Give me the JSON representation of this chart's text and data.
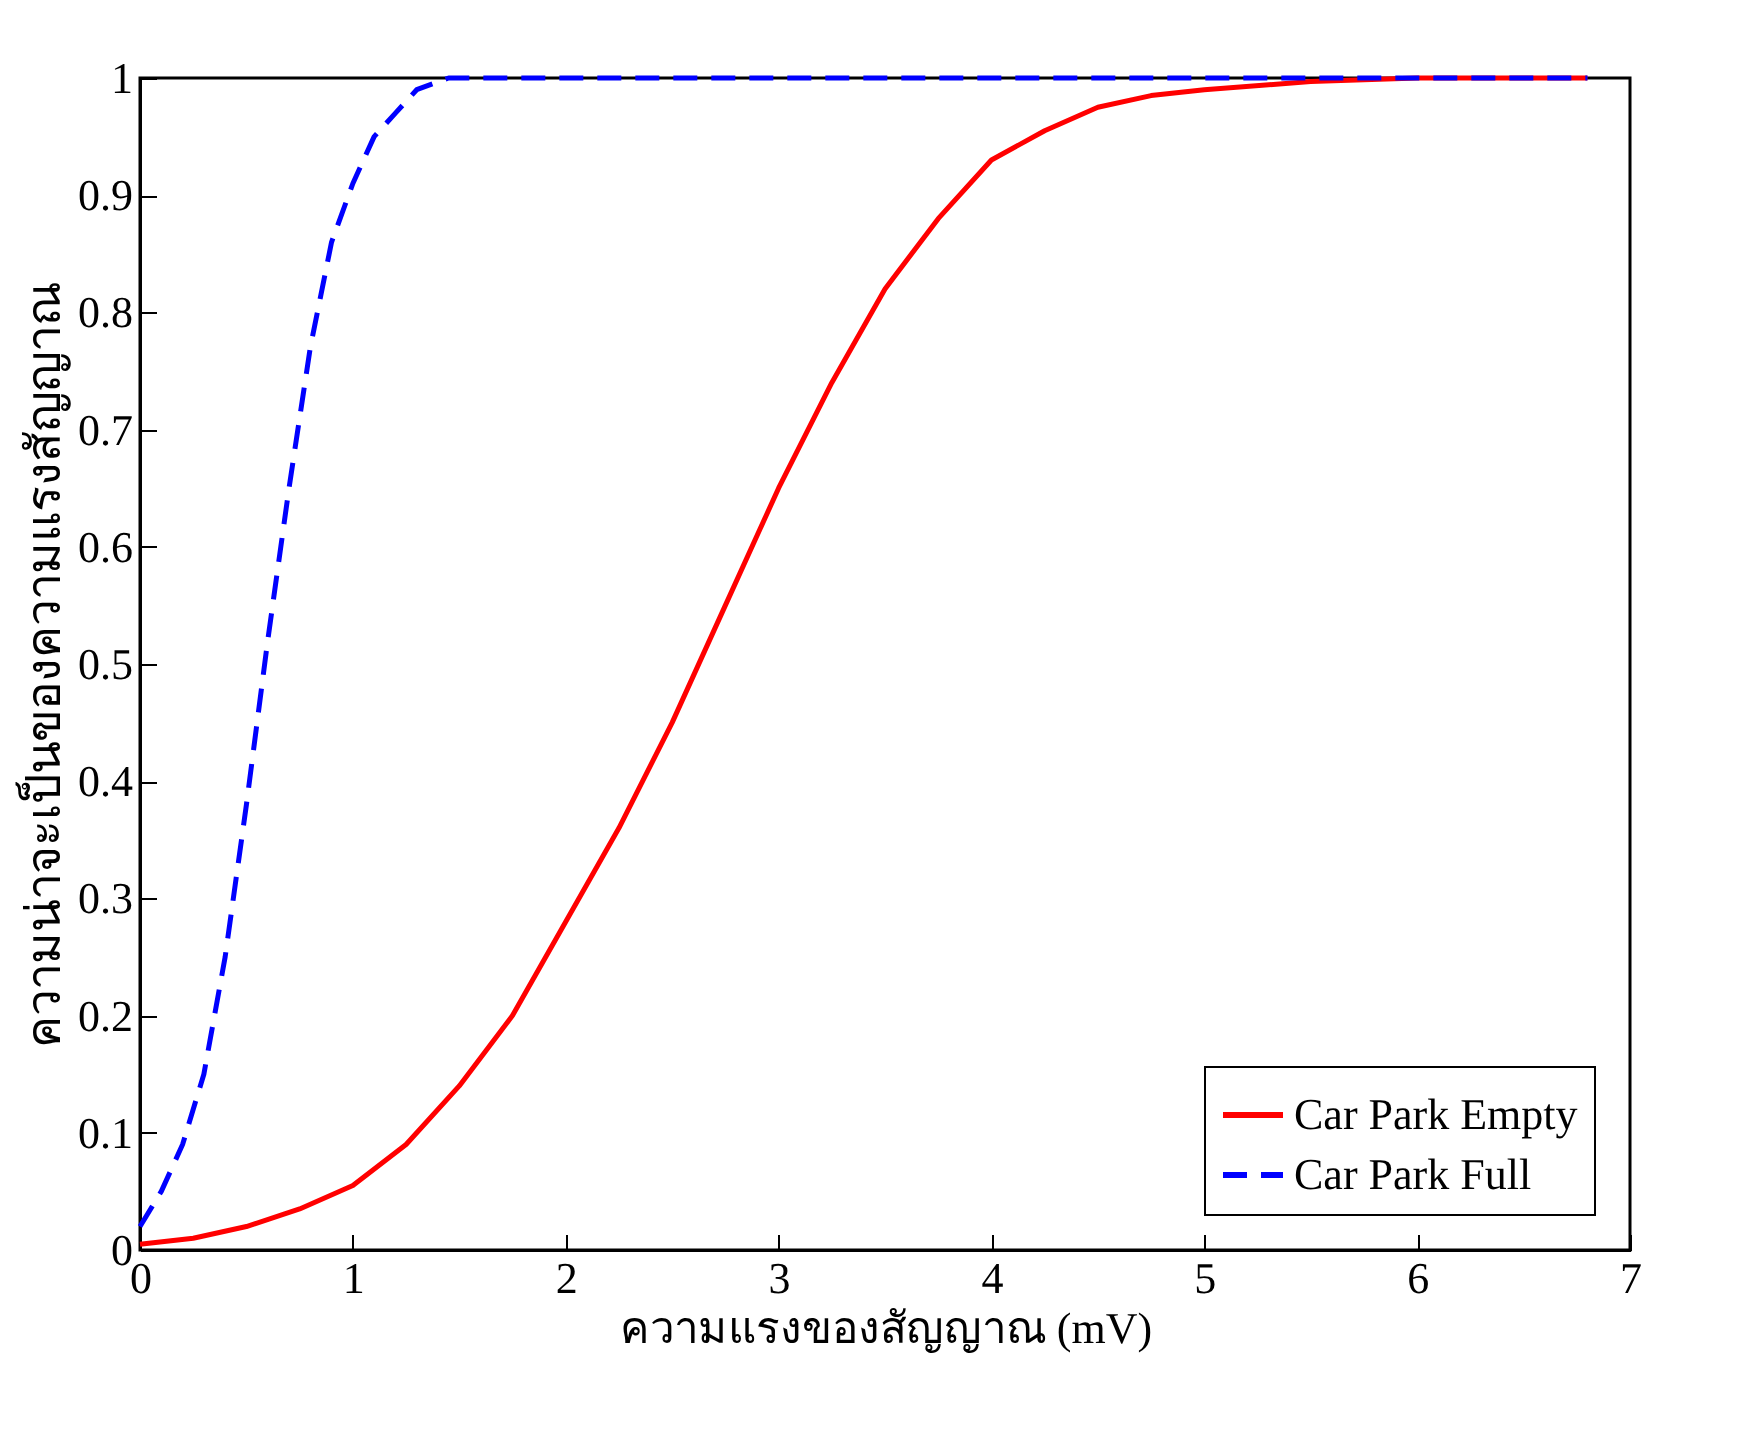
{
  "chart_data": {
    "type": "line",
    "xlabel": "ความแรงของสัญญาณ (mV)",
    "ylabel": "ความน่าจะเป็นของความแรงสัญญาณ",
    "xlim": [
      0,
      7
    ],
    "xticks": [
      0,
      1,
      2,
      3,
      4,
      5,
      6,
      7
    ],
    "ylim": [
      0,
      1
    ],
    "yticks": [
      0,
      0.1,
      0.2,
      0.3,
      0.4,
      0.5,
      0.6,
      0.7,
      0.8,
      0.9,
      1
    ],
    "grid": false,
    "legend": "bottom right",
    "series": [
      {
        "name": "Car Park Empty",
        "color": "#ff0000",
        "line_style": "solid",
        "x": [
          0,
          0.25,
          0.5,
          0.75,
          1,
          1.25,
          1.5,
          1.75,
          2,
          2.25,
          2.5,
          2.75,
          3,
          3.25,
          3.5,
          3.75,
          4,
          4.25,
          4.5,
          4.75,
          5,
          5.5,
          6,
          6.8
        ],
        "values": [
          0.005,
          0.01,
          0.02,
          0.035,
          0.055,
          0.09,
          0.14,
          0.2,
          0.28,
          0.36,
          0.45,
          0.55,
          0.65,
          0.74,
          0.82,
          0.88,
          0.93,
          0.955,
          0.975,
          0.985,
          0.99,
          0.997,
          1,
          1
        ]
      },
      {
        "name": "Car Park Full",
        "color": "#0000ff",
        "line_style": "dashed",
        "x": [
          0,
          0.1,
          0.2,
          0.3,
          0.4,
          0.5,
          0.6,
          0.7,
          0.8,
          0.9,
          1,
          1.1,
          1.2,
          1.3,
          1.45,
          6.8
        ],
        "values": [
          0.02,
          0.05,
          0.09,
          0.15,
          0.25,
          0.38,
          0.52,
          0.65,
          0.77,
          0.86,
          0.91,
          0.95,
          0.97,
          0.99,
          1,
          1
        ]
      }
    ]
  }
}
